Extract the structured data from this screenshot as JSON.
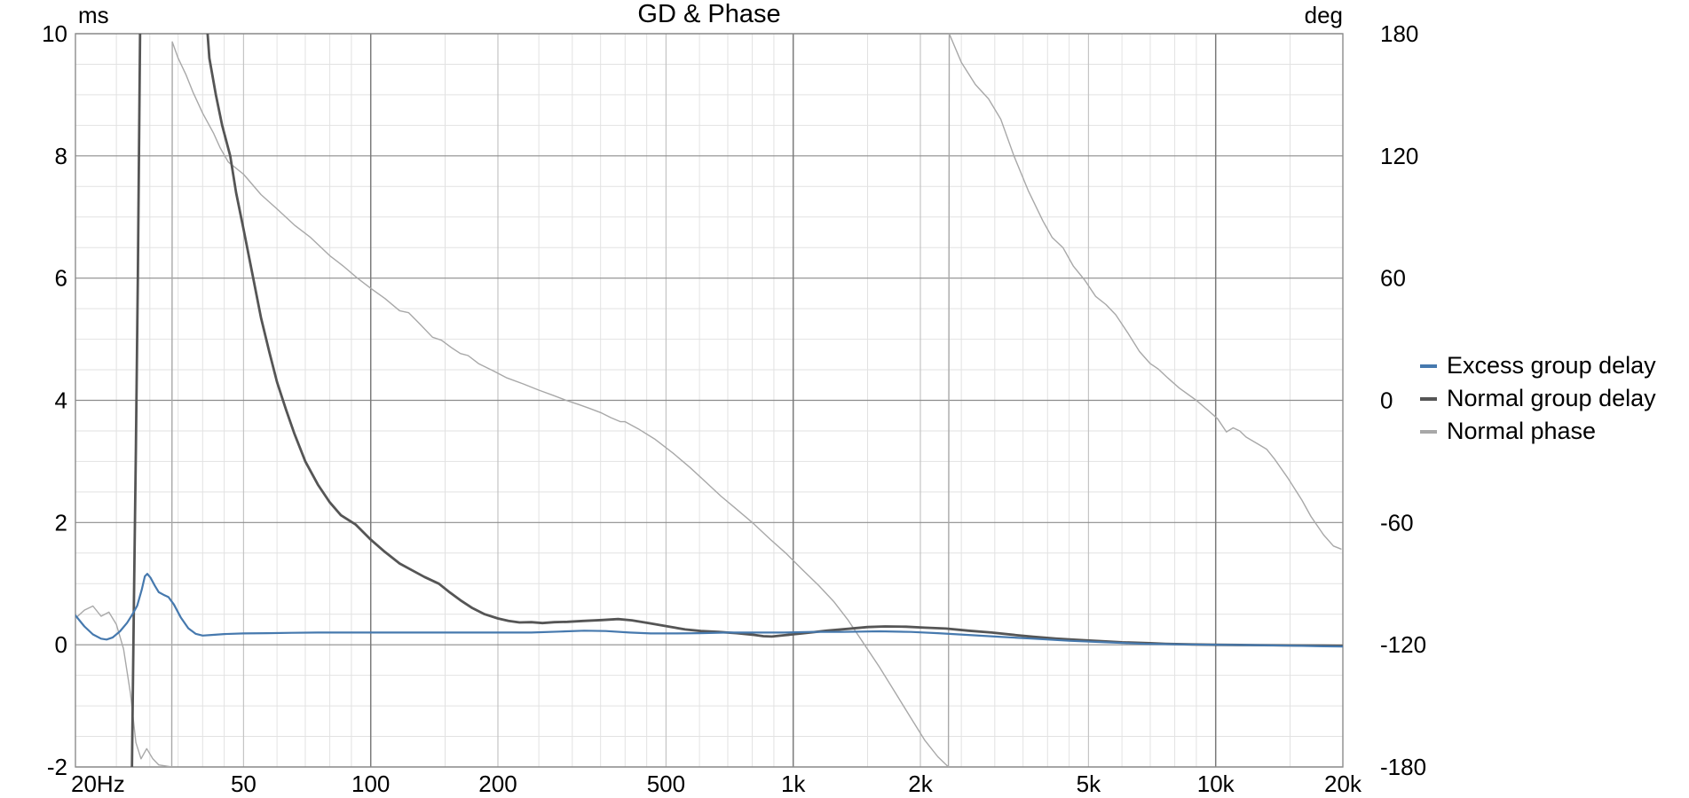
{
  "chart_data": {
    "type": "line",
    "title": "GD & Phase",
    "x_axis": {
      "scale": "log",
      "range": [
        20,
        20000
      ],
      "tick_labels": [
        "20Hz",
        "50",
        "100",
        "200",
        "500",
        "1k",
        "2k",
        "5k",
        "10k",
        "20k"
      ],
      "tick_freqs": [
        20,
        50,
        100,
        200,
        500,
        1000,
        2000,
        5000,
        10000,
        20000
      ]
    },
    "y_left": {
      "unit": "ms",
      "range": [
        -2,
        10
      ],
      "ticks": [
        10,
        8,
        6,
        4,
        2,
        0,
        -2
      ]
    },
    "y_right": {
      "unit": "deg",
      "range": [
        -180,
        180
      ],
      "ticks": [
        180,
        120,
        60,
        0,
        -60,
        -120,
        -180
      ]
    },
    "grid": true,
    "legend_position": "right",
    "colors": {
      "excess": "#4679ae",
      "normal_gd": "#555555",
      "phase": "#a8a8a8",
      "grid_minor": "#e2e2e2",
      "grid_medium": "#c4c4c4",
      "grid_major": "#8c8c8c",
      "grid_decade": "#7a7a7a"
    },
    "series": [
      {
        "name": "Excess group delay",
        "axis": "left",
        "color": "#4679ae",
        "width": 2.2,
        "points": [
          [
            20,
            0.48
          ],
          [
            21,
            0.3
          ],
          [
            22,
            0.17
          ],
          [
            23,
            0.1
          ],
          [
            23.7,
            0.085
          ],
          [
            24.5,
            0.12
          ],
          [
            25.5,
            0.22
          ],
          [
            26.5,
            0.36
          ],
          [
            27.3,
            0.5
          ],
          [
            28,
            0.64
          ],
          [
            28.7,
            0.9
          ],
          [
            29.2,
            1.12
          ],
          [
            29.6,
            1.16
          ],
          [
            30.1,
            1.1
          ],
          [
            30.8,
            0.97
          ],
          [
            31.5,
            0.86
          ],
          [
            32.3,
            0.82
          ],
          [
            33.2,
            0.78
          ],
          [
            34.2,
            0.66
          ],
          [
            35.5,
            0.45
          ],
          [
            37,
            0.27
          ],
          [
            38.5,
            0.18
          ],
          [
            40,
            0.15
          ],
          [
            42,
            0.16
          ],
          [
            45,
            0.175
          ],
          [
            50,
            0.185
          ],
          [
            57,
            0.19
          ],
          [
            65,
            0.195
          ],
          [
            75,
            0.2
          ],
          [
            90,
            0.2
          ],
          [
            110,
            0.2
          ],
          [
            140,
            0.2
          ],
          [
            170,
            0.2
          ],
          [
            200,
            0.2
          ],
          [
            240,
            0.2
          ],
          [
            280,
            0.215
          ],
          [
            320,
            0.23
          ],
          [
            360,
            0.225
          ],
          [
            410,
            0.2
          ],
          [
            460,
            0.185
          ],
          [
            520,
            0.185
          ],
          [
            600,
            0.19
          ],
          [
            700,
            0.2
          ],
          [
            800,
            0.2
          ],
          [
            950,
            0.2
          ],
          [
            1100,
            0.21
          ],
          [
            1300,
            0.21
          ],
          [
            1600,
            0.22
          ],
          [
            1900,
            0.21
          ],
          [
            2200,
            0.19
          ],
          [
            2600,
            0.16
          ],
          [
            3000,
            0.135
          ],
          [
            3700,
            0.1
          ],
          [
            4500,
            0.065
          ],
          [
            5500,
            0.04
          ],
          [
            6800,
            0.015
          ],
          [
            8500,
            0.005
          ],
          [
            10000,
            0
          ],
          [
            12000,
            -0.005
          ],
          [
            15000,
            -0.015
          ],
          [
            18000,
            -0.025
          ],
          [
            20000,
            -0.03
          ]
        ]
      },
      {
        "name": "Normal group delay",
        "axis": "left",
        "color": "#555555",
        "width": 2.8,
        "points": [
          [
            27.2,
            -2.1
          ],
          [
            27.5,
            0.6
          ],
          [
            27.8,
            3.2
          ],
          [
            28.1,
            6.0
          ],
          [
            28.5,
            10.6
          ],
          [
            40.5,
            10.6
          ],
          [
            41.5,
            9.6
          ],
          [
            43,
            9.0
          ],
          [
            44.5,
            8.5
          ],
          [
            46.5,
            8.0
          ],
          [
            48,
            7.4
          ],
          [
            50,
            6.8
          ],
          [
            52.7,
            6.0
          ],
          [
            55,
            5.35
          ],
          [
            57.5,
            4.8
          ],
          [
            60,
            4.3
          ],
          [
            63,
            3.85
          ],
          [
            66,
            3.45
          ],
          [
            70,
            3.0
          ],
          [
            75,
            2.62
          ],
          [
            80,
            2.33
          ],
          [
            85,
            2.12
          ],
          [
            92,
            1.97
          ],
          [
            100,
            1.72
          ],
          [
            108,
            1.52
          ],
          [
            117,
            1.33
          ],
          [
            126,
            1.21
          ],
          [
            134,
            1.11
          ],
          [
            145,
            1.0
          ],
          [
            153,
            0.87
          ],
          [
            163,
            0.73
          ],
          [
            174,
            0.6
          ],
          [
            186,
            0.5
          ],
          [
            200,
            0.43
          ],
          [
            212,
            0.39
          ],
          [
            225,
            0.365
          ],
          [
            240,
            0.37
          ],
          [
            255,
            0.355
          ],
          [
            272,
            0.37
          ],
          [
            292,
            0.375
          ],
          [
            318,
            0.39
          ],
          [
            352,
            0.405
          ],
          [
            385,
            0.42
          ],
          [
            415,
            0.4
          ],
          [
            455,
            0.355
          ],
          [
            505,
            0.3
          ],
          [
            555,
            0.25
          ],
          [
            605,
            0.225
          ],
          [
            665,
            0.21
          ],
          [
            735,
            0.19
          ],
          [
            810,
            0.16
          ],
          [
            850,
            0.14
          ],
          [
            890,
            0.135
          ],
          [
            950,
            0.155
          ],
          [
            1050,
            0.185
          ],
          [
            1200,
            0.23
          ],
          [
            1350,
            0.26
          ],
          [
            1500,
            0.29
          ],
          [
            1650,
            0.3
          ],
          [
            1850,
            0.295
          ],
          [
            2050,
            0.28
          ],
          [
            2300,
            0.265
          ],
          [
            2600,
            0.23
          ],
          [
            2950,
            0.2
          ],
          [
            3400,
            0.155
          ],
          [
            3700,
            0.13
          ],
          [
            4200,
            0.1
          ],
          [
            4700,
            0.08
          ],
          [
            5500,
            0.055
          ],
          [
            6000,
            0.04
          ],
          [
            7000,
            0.025
          ],
          [
            7600,
            0.015
          ],
          [
            8800,
            0.005
          ],
          [
            10000,
            0
          ],
          [
            12000,
            -0.005
          ],
          [
            15000,
            -0.01
          ],
          [
            18000,
            -0.015
          ],
          [
            20000,
            -0.02
          ]
        ]
      },
      {
        "name": "Normal phase",
        "axis": "right",
        "color": "#a8a8a8",
        "width": 1.4,
        "points": [
          [
            20,
            -107
          ],
          [
            21,
            -103
          ],
          [
            22,
            -101
          ],
          [
            23,
            -106
          ],
          [
            24,
            -104
          ],
          [
            25,
            -110
          ],
          [
            26,
            -122
          ],
          [
            27,
            -144
          ],
          [
            27.8,
            -168
          ],
          [
            28.6,
            -176
          ],
          [
            29.5,
            -171
          ],
          [
            30.5,
            -176
          ],
          [
            31.5,
            -179
          ],
          [
            33.8,
            -180
          ],
          [
            33.9,
            176
          ],
          [
            35,
            168
          ],
          [
            36.5,
            160
          ],
          [
            38,
            151
          ],
          [
            40,
            141
          ],
          [
            42.5,
            131
          ],
          [
            44,
            124
          ],
          [
            46,
            117
          ],
          [
            50,
            111
          ],
          [
            55,
            101
          ],
          [
            60,
            94
          ],
          [
            66,
            86
          ],
          [
            72,
            80
          ],
          [
            80,
            71
          ],
          [
            86,
            66
          ],
          [
            93,
            60
          ],
          [
            100,
            55
          ],
          [
            108,
            50
          ],
          [
            117,
            44
          ],
          [
            123,
            43
          ],
          [
            130,
            38
          ],
          [
            140,
            31
          ],
          [
            147,
            29.5
          ],
          [
            155,
            26
          ],
          [
            163,
            23
          ],
          [
            170,
            22
          ],
          [
            180,
            18
          ],
          [
            195,
            14.5
          ],
          [
            210,
            11
          ],
          [
            230,
            8
          ],
          [
            250,
            5
          ],
          [
            270,
            2.5
          ],
          [
            290,
            0
          ],
          [
            310,
            -2
          ],
          [
            330,
            -4
          ],
          [
            350,
            -6
          ],
          [
            370,
            -8.5
          ],
          [
            390,
            -10.5
          ],
          [
            400,
            -10.5
          ],
          [
            430,
            -14
          ],
          [
            470,
            -19
          ],
          [
            520,
            -26
          ],
          [
            570,
            -33
          ],
          [
            620,
            -40
          ],
          [
            674,
            -47
          ],
          [
            730,
            -53
          ],
          [
            800,
            -60
          ],
          [
            880,
            -68
          ],
          [
            960,
            -75
          ],
          [
            1050,
            -83
          ],
          [
            1150,
            -91
          ],
          [
            1250,
            -99
          ],
          [
            1350,
            -108
          ],
          [
            1475,
            -120
          ],
          [
            1600,
            -131
          ],
          [
            1750,
            -144
          ],
          [
            1900,
            -156
          ],
          [
            2050,
            -167
          ],
          [
            2200,
            -175
          ],
          [
            2330,
            -180
          ],
          [
            2340,
            180
          ],
          [
            2500,
            166
          ],
          [
            2700,
            155
          ],
          [
            2900,
            148
          ],
          [
            3100,
            138
          ],
          [
            3330,
            120
          ],
          [
            3600,
            103
          ],
          [
            3900,
            88
          ],
          [
            4100,
            80
          ],
          [
            4350,
            75
          ],
          [
            4600,
            66
          ],
          [
            4900,
            59
          ],
          [
            5200,
            51
          ],
          [
            5500,
            47
          ],
          [
            5800,
            42
          ],
          [
            6200,
            33
          ],
          [
            6600,
            24
          ],
          [
            7000,
            18
          ],
          [
            7300,
            15.5
          ],
          [
            7700,
            11
          ],
          [
            8200,
            6
          ],
          [
            9000,
            0
          ],
          [
            9600,
            -5
          ],
          [
            10100,
            -9
          ],
          [
            10600,
            -15.5
          ],
          [
            11000,
            -13.5
          ],
          [
            11400,
            -15
          ],
          [
            11800,
            -18
          ],
          [
            12600,
            -21.5
          ],
          [
            13200,
            -24
          ],
          [
            13800,
            -29
          ],
          [
            14800,
            -38
          ],
          [
            16000,
            -49
          ],
          [
            16800,
            -57
          ],
          [
            18000,
            -66
          ],
          [
            19000,
            -71.5
          ],
          [
            19800,
            -73
          ]
        ]
      }
    ]
  }
}
